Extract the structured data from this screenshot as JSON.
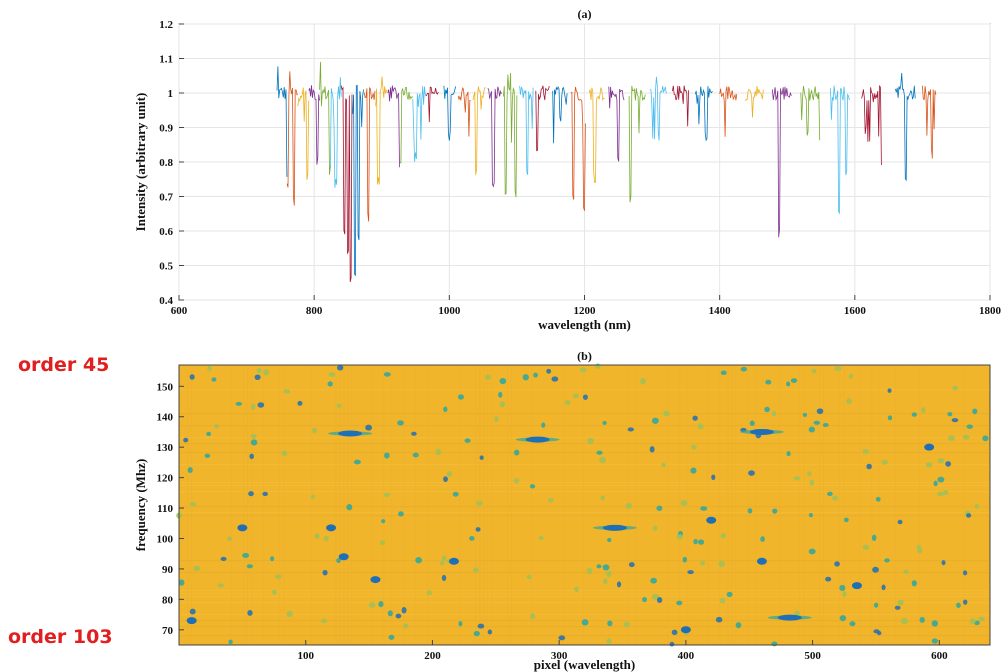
{
  "figure_labels": {
    "order_top": "order 45",
    "order_bottom": "order 103"
  },
  "colors": {
    "order_label": "#e02020",
    "heatmap_background": "#f0b52a",
    "heatmap_spot_dark": "#1f6fb6",
    "heatmap_spot_light": "#2aa7a4",
    "heatmap_spot_green": "#9cc15a",
    "series_palette": [
      "#0072bd",
      "#d95319",
      "#edb120",
      "#7e2f8e",
      "#77ac30",
      "#4dbeee",
      "#a2142f"
    ]
  },
  "chart_data": [
    {
      "type": "line",
      "title": "(a)",
      "xlabel": "wavelength (nm)",
      "ylabel": "Intensity (arbitrary unit)",
      "xlim": [
        600,
        1800
      ],
      "ylim": [
        0.4,
        1.2
      ],
      "xticks": [
        600,
        800,
        1000,
        1200,
        1400,
        1600,
        1800
      ],
      "yticks": [
        0.4,
        0.5,
        0.6,
        0.7,
        0.8,
        0.9,
        1,
        1.1,
        1.2
      ],
      "grid": true,
      "legend": "none",
      "description_series": "normalized echelle spectrum, one colored segment per diffraction order",
      "orders": [
        {
          "start": 745,
          "end": 760
        },
        {
          "start": 760,
          "end": 776
        },
        {
          "start": 776,
          "end": 792
        },
        {
          "start": 792,
          "end": 808
        },
        {
          "start": 808,
          "end": 824
        },
        {
          "start": 824,
          "end": 840
        },
        {
          "start": 840,
          "end": 857
        },
        {
          "start": 857,
          "end": 874
        },
        {
          "start": 874,
          "end": 891
        },
        {
          "start": 891,
          "end": 909
        },
        {
          "start": 909,
          "end": 927
        },
        {
          "start": 927,
          "end": 946
        },
        {
          "start": 946,
          "end": 965
        },
        {
          "start": 965,
          "end": 984
        },
        {
          "start": 992,
          "end": 1010
        },
        {
          "start": 1013,
          "end": 1032
        },
        {
          "start": 1035,
          "end": 1054
        },
        {
          "start": 1057,
          "end": 1077
        },
        {
          "start": 1080,
          "end": 1100
        },
        {
          "start": 1104,
          "end": 1124
        },
        {
          "start": 1128,
          "end": 1149
        },
        {
          "start": 1153,
          "end": 1175
        },
        {
          "start": 1180,
          "end": 1202
        },
        {
          "start": 1207,
          "end": 1230
        },
        {
          "start": 1236,
          "end": 1259
        },
        {
          "start": 1266,
          "end": 1290
        },
        {
          "start": 1297,
          "end": 1322
        },
        {
          "start": 1330,
          "end": 1355
        },
        {
          "start": 1364,
          "end": 1390
        },
        {
          "start": 1400,
          "end": 1426
        },
        {
          "start": 1438,
          "end": 1465
        },
        {
          "start": 1478,
          "end": 1506
        },
        {
          "start": 1520,
          "end": 1548
        },
        {
          "start": 1564,
          "end": 1593
        },
        {
          "start": 1610,
          "end": 1640
        },
        {
          "start": 1660,
          "end": 1690
        },
        {
          "start": 1700,
          "end": 1720
        }
      ],
      "baseline": 1.0,
      "deep_absorption_lines": [
        {
          "x": 760,
          "y": 0.72
        },
        {
          "x": 770,
          "y": 0.67
        },
        {
          "x": 790,
          "y": 0.74
        },
        {
          "x": 805,
          "y": 0.78
        },
        {
          "x": 823,
          "y": 0.75
        },
        {
          "x": 832,
          "y": 0.72
        },
        {
          "x": 845,
          "y": 0.58
        },
        {
          "x": 850,
          "y": 0.52
        },
        {
          "x": 854,
          "y": 0.44
        },
        {
          "x": 860,
          "y": 0.46
        },
        {
          "x": 866,
          "y": 0.55
        },
        {
          "x": 880,
          "y": 0.62
        },
        {
          "x": 895,
          "y": 0.73
        },
        {
          "x": 927,
          "y": 0.78
        },
        {
          "x": 950,
          "y": 0.8
        },
        {
          "x": 1000,
          "y": 0.85
        },
        {
          "x": 1040,
          "y": 0.76
        },
        {
          "x": 1065,
          "y": 0.7
        },
        {
          "x": 1083,
          "y": 0.68
        },
        {
          "x": 1098,
          "y": 0.69
        },
        {
          "x": 1115,
          "y": 0.74
        },
        {
          "x": 1130,
          "y": 0.82
        },
        {
          "x": 1183,
          "y": 0.68
        },
        {
          "x": 1199,
          "y": 0.64
        },
        {
          "x": 1215,
          "y": 0.74
        },
        {
          "x": 1250,
          "y": 0.79
        },
        {
          "x": 1268,
          "y": 0.67
        },
        {
          "x": 1310,
          "y": 0.86
        },
        {
          "x": 1362,
          "y": 0.82
        },
        {
          "x": 1380,
          "y": 0.86
        },
        {
          "x": 1470,
          "y": 0.71
        },
        {
          "x": 1488,
          "y": 0.57
        },
        {
          "x": 1510,
          "y": 0.65
        },
        {
          "x": 1530,
          "y": 0.85
        },
        {
          "x": 1577,
          "y": 0.64
        },
        {
          "x": 1587,
          "y": 0.74
        },
        {
          "x": 1604,
          "y": 0.8
        },
        {
          "x": 1640,
          "y": 0.79
        },
        {
          "x": 1675,
          "y": 0.73
        },
        {
          "x": 1714,
          "y": 0.81
        }
      ]
    },
    {
      "type": "heatmap",
      "title": "(b)",
      "xlabel": "pixel (wavelength)",
      "ylabel": "frequency (Mhz)",
      "xlim": [
        0,
        640
      ],
      "ylim": [
        65,
        157
      ],
      "xticks": [
        100,
        200,
        300,
        400,
        500,
        600
      ],
      "yticks": [
        70,
        80,
        90,
        100,
        110,
        120,
        130,
        140,
        150
      ],
      "grid": false,
      "strong_features": [
        {
          "x": 135,
          "y": 134.5,
          "kind": "elongated"
        },
        {
          "x": 283,
          "y": 132.5,
          "kind": "elongated"
        },
        {
          "x": 460,
          "y": 135,
          "kind": "elongated"
        },
        {
          "x": 130,
          "y": 94,
          "kind": "spot"
        },
        {
          "x": 344,
          "y": 103.5,
          "kind": "elongated"
        },
        {
          "x": 155,
          "y": 86.5,
          "kind": "spot"
        },
        {
          "x": 482,
          "y": 74,
          "kind": "elongated"
        },
        {
          "x": 400,
          "y": 70,
          "kind": "spot"
        },
        {
          "x": 217,
          "y": 92.5,
          "kind": "spot"
        },
        {
          "x": 460,
          "y": 92.5,
          "kind": "spot"
        },
        {
          "x": 50,
          "y": 103.5,
          "kind": "spot"
        },
        {
          "x": 120,
          "y": 103.5,
          "kind": "spot"
        },
        {
          "x": 592,
          "y": 130,
          "kind": "spot"
        },
        {
          "x": 420,
          "y": 106,
          "kind": "spot"
        },
        {
          "x": 535,
          "y": 84.5,
          "kind": "spot"
        },
        {
          "x": 10,
          "y": 73,
          "kind": "spot"
        }
      ]
    }
  ]
}
